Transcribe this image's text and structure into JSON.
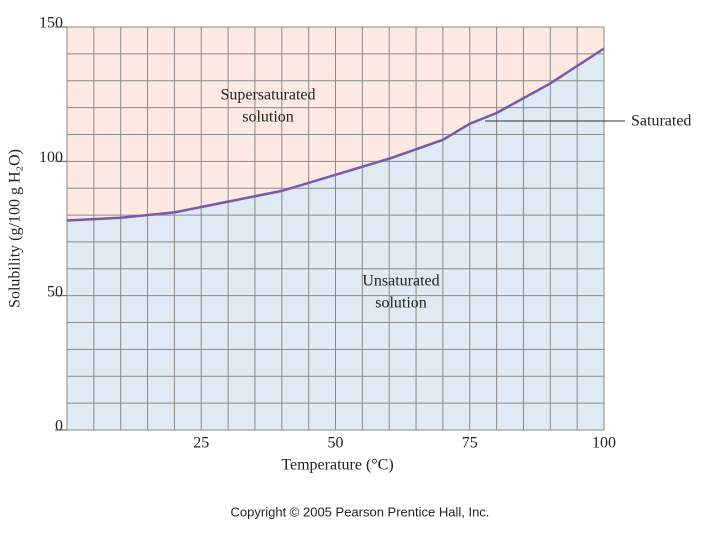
{
  "chart_data": {
    "type": "line",
    "x_label": "Temperature (°C)",
    "y_label": "Solubility (g/100 g H₂O)",
    "x": [
      0,
      10,
      20,
      25,
      30,
      40,
      50,
      60,
      70,
      75,
      80,
      90,
      100
    ],
    "series": [
      {
        "name": "Saturated",
        "color": "#7a5aa8",
        "values": [
          78,
          79,
          81,
          83,
          85,
          89,
          95,
          101,
          108,
          114,
          118,
          129,
          142
        ]
      }
    ],
    "xlim": [
      0,
      100
    ],
    "xticks": [
      25,
      50,
      75,
      100
    ],
    "ylim": [
      0,
      150
    ],
    "yticks": [
      0,
      50,
      100,
      150
    ],
    "xminorticks": [
      0,
      5,
      10,
      15,
      20,
      25,
      30,
      35,
      40,
      45,
      50,
      55,
      60,
      65,
      70,
      75,
      80,
      85,
      90,
      95,
      100
    ],
    "yminorticks": [
      0,
      10,
      20,
      30,
      40,
      50,
      60,
      70,
      80,
      90,
      100,
      110,
      120,
      130,
      140,
      150
    ],
    "grid": true,
    "above_color": "#fce9e2",
    "below_color": "#dfeaf4",
    "annotations": [
      {
        "lines": [
          "Supersaturated",
          "solution"
        ]
      },
      {
        "lines": [
          "Unsaturated",
          "solution"
        ]
      }
    ],
    "footer": "Copyright © 2005 Pearson Prentice Hall, Inc."
  }
}
